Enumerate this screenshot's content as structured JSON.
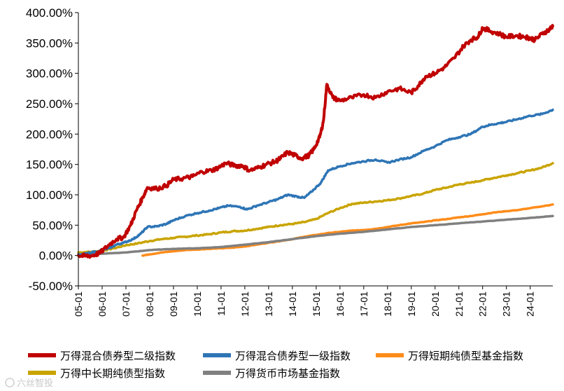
{
  "chart_data": {
    "type": "line",
    "title": "",
    "xlabel": "",
    "ylabel": "",
    "ylim": [
      -0.5,
      4.0
    ],
    "y_ticks": [
      "400.00%",
      "350.00%",
      "300.00%",
      "250.00%",
      "200.00%",
      "150.00%",
      "100.00%",
      "50.00%",
      "0.00%",
      "-50.00%"
    ],
    "y_tick_values": [
      4.0,
      3.5,
      3.0,
      2.5,
      2.0,
      1.5,
      1.0,
      0.5,
      0.0,
      -0.5
    ],
    "x_ticks": [
      "05-01",
      "06-01",
      "07-01",
      "08-01",
      "09-01",
      "10-01",
      "11-01",
      "12-01",
      "13-01",
      "14-01",
      "15-01",
      "16-01",
      "17-01",
      "18-01",
      "19-01",
      "20-01",
      "21-01",
      "22-01",
      "23-01",
      "24-01"
    ],
    "x_tick_years": [
      2005,
      2006,
      2007,
      2008,
      2009,
      2010,
      2011,
      2012,
      2013,
      2014,
      2015,
      2016,
      2017,
      2018,
      2019,
      2020,
      2021,
      2022,
      2023,
      2024
    ],
    "xlim": [
      2005.0,
      2024.95
    ],
    "legend_position": "bottom",
    "series": [
      {
        "name": "万得混合债券型二级指数",
        "color": "#c00000",
        "x": [
          2005.0,
          2005.3,
          2005.6,
          2005.9,
          2006.3,
          2006.6,
          2006.9,
          2007.2,
          2007.45,
          2007.7,
          2007.9,
          2008.3,
          2008.7,
          2009.0,
          2009.4,
          2009.8,
          2010.2,
          2010.6,
          2010.9,
          2011.2,
          2011.6,
          2011.9,
          2012.2,
          2012.6,
          2012.9,
          2013.3,
          2013.5,
          2013.8,
          2014.1,
          2014.4,
          2014.7,
          2014.9,
          2015.15,
          2015.3,
          2015.45,
          2015.7,
          2016.0,
          2016.5,
          2017.0,
          2017.5,
          2018.0,
          2018.5,
          2019.0,
          2019.3,
          2019.6,
          2020.0,
          2020.4,
          2020.8,
          2021.2,
          2021.5,
          2021.8,
          2022.0,
          2022.3,
          2022.7,
          2023.0,
          2023.4,
          2023.8,
          2024.0,
          2024.2,
          2024.5,
          2024.8,
          2024.95
        ],
        "y": [
          0.0,
          -0.01,
          0.0,
          0.04,
          0.18,
          0.27,
          0.3,
          0.5,
          0.75,
          0.95,
          1.12,
          1.1,
          1.15,
          1.25,
          1.27,
          1.3,
          1.38,
          1.4,
          1.45,
          1.52,
          1.48,
          1.48,
          1.4,
          1.45,
          1.5,
          1.55,
          1.6,
          1.7,
          1.65,
          1.6,
          1.65,
          1.75,
          1.95,
          2.2,
          2.82,
          2.6,
          2.55,
          2.6,
          2.65,
          2.6,
          2.7,
          2.75,
          2.68,
          2.8,
          2.95,
          3.0,
          3.1,
          3.25,
          3.45,
          3.55,
          3.6,
          3.75,
          3.7,
          3.65,
          3.6,
          3.62,
          3.6,
          3.58,
          3.55,
          3.65,
          3.72,
          3.78
        ]
      },
      {
        "name": "万得混合债券型一级指数",
        "color": "#2e75b6",
        "x": [
          2005.0,
          2005.4,
          2005.9,
          2006.3,
          2006.6,
          2006.9,
          2007.3,
          2007.6,
          2007.9,
          2008.3,
          2008.7,
          2009.0,
          2009.5,
          2010.0,
          2010.5,
          2010.9,
          2011.3,
          2011.8,
          2012.1,
          2012.5,
          2013.0,
          2013.4,
          2013.8,
          2014.2,
          2014.5,
          2014.8,
          2015.2,
          2015.5,
          2016.0,
          2016.5,
          2017.0,
          2017.5,
          2018.0,
          2018.5,
          2019.0,
          2019.5,
          2020.0,
          2020.5,
          2021.0,
          2021.5,
          2022.0,
          2022.3,
          2022.7,
          2023.0,
          2023.5,
          2024.0,
          2024.5,
          2024.95
        ],
        "y": [
          0.0,
          0.04,
          0.08,
          0.12,
          0.18,
          0.21,
          0.27,
          0.35,
          0.47,
          0.48,
          0.52,
          0.58,
          0.65,
          0.7,
          0.74,
          0.78,
          0.82,
          0.8,
          0.76,
          0.82,
          0.88,
          0.93,
          1.0,
          0.97,
          0.95,
          1.05,
          1.2,
          1.4,
          1.47,
          1.52,
          1.55,
          1.58,
          1.53,
          1.58,
          1.62,
          1.72,
          1.8,
          1.9,
          1.95,
          2.0,
          2.12,
          2.15,
          2.18,
          2.2,
          2.25,
          2.3,
          2.33,
          2.4
        ]
      },
      {
        "name": "万得短期纯债型基金指数",
        "color": "#ff8c1a",
        "x": [
          2007.7,
          2008.0,
          2008.5,
          2009.0,
          2009.5,
          2010.0,
          2010.5,
          2011.0,
          2011.5,
          2012.0,
          2012.5,
          2013.0,
          2013.5,
          2014.0,
          2014.5,
          2015.0,
          2015.5,
          2016.0,
          2016.5,
          2017.0,
          2017.5,
          2018.0,
          2018.5,
          2019.0,
          2019.5,
          2020.0,
          2020.5,
          2021.0,
          2021.5,
          2022.0,
          2022.5,
          2023.0,
          2023.5,
          2024.0,
          2024.5,
          2024.95
        ],
        "y": [
          0.0,
          0.02,
          0.05,
          0.07,
          0.09,
          0.1,
          0.11,
          0.12,
          0.13,
          0.15,
          0.18,
          0.21,
          0.24,
          0.27,
          0.31,
          0.34,
          0.37,
          0.39,
          0.41,
          0.42,
          0.44,
          0.47,
          0.5,
          0.53,
          0.55,
          0.58,
          0.6,
          0.63,
          0.65,
          0.68,
          0.71,
          0.73,
          0.75,
          0.78,
          0.81,
          0.84
        ]
      },
      {
        "name": "万得中长期纯债型指数",
        "color": "#c9a400",
        "x": [
          2005.0,
          2005.5,
          2006.0,
          2006.5,
          2007.0,
          2007.5,
          2008.0,
          2008.5,
          2009.0,
          2009.5,
          2010.0,
          2010.5,
          2011.0,
          2011.5,
          2012.0,
          2012.5,
          2013.0,
          2013.5,
          2014.0,
          2014.5,
          2015.0,
          2015.5,
          2016.0,
          2016.5,
          2017.0,
          2017.5,
          2018.0,
          2018.5,
          2019.0,
          2019.5,
          2020.0,
          2020.5,
          2021.0,
          2021.5,
          2022.0,
          2022.5,
          2023.0,
          2023.5,
          2024.0,
          2024.5,
          2024.95
        ],
        "y": [
          0.05,
          0.06,
          0.08,
          0.12,
          0.17,
          0.2,
          0.24,
          0.27,
          0.29,
          0.31,
          0.33,
          0.35,
          0.38,
          0.4,
          0.41,
          0.44,
          0.47,
          0.5,
          0.52,
          0.55,
          0.6,
          0.7,
          0.78,
          0.85,
          0.87,
          0.89,
          0.91,
          0.94,
          0.98,
          1.02,
          1.08,
          1.12,
          1.17,
          1.2,
          1.24,
          1.28,
          1.32,
          1.36,
          1.4,
          1.45,
          1.52
        ]
      },
      {
        "name": "万得货币市场基金指数",
        "color": "#808080",
        "x": [
          2005.0,
          2006.0,
          2007.0,
          2008.0,
          2009.0,
          2010.0,
          2011.0,
          2012.0,
          2013.0,
          2014.0,
          2015.0,
          2016.0,
          2017.0,
          2018.0,
          2019.0,
          2020.0,
          2021.0,
          2022.0,
          2023.0,
          2024.0,
          2024.95
        ],
        "y": [
          0.02,
          0.03,
          0.05,
          0.09,
          0.11,
          0.12,
          0.14,
          0.18,
          0.22,
          0.27,
          0.32,
          0.36,
          0.39,
          0.43,
          0.47,
          0.5,
          0.53,
          0.56,
          0.59,
          0.62,
          0.65
        ]
      }
    ]
  },
  "watermark": {
    "text": "六丝智投"
  }
}
